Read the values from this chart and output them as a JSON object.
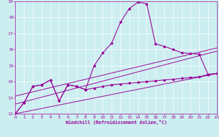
{
  "x": [
    0,
    1,
    2,
    3,
    4,
    5,
    6,
    7,
    8,
    9,
    10,
    11,
    12,
    13,
    14,
    15,
    16,
    17,
    18,
    19,
    20,
    21,
    22,
    23
  ],
  "peak_line": [
    12.0,
    12.7,
    13.7,
    13.8,
    14.1,
    12.8,
    13.8,
    13.7,
    13.5,
    15.0,
    15.8,
    16.4,
    17.7,
    18.55,
    18.95,
    18.85,
    16.35,
    16.2,
    16.0,
    15.8,
    15.75,
    15.7,
    14.45,
    14.5
  ],
  "flat_line": [
    12.0,
    12.7,
    13.7,
    13.8,
    14.1,
    12.8,
    13.8,
    13.7,
    13.5,
    13.6,
    13.7,
    13.8,
    13.85,
    13.9,
    13.95,
    14.0,
    14.05,
    14.1,
    14.15,
    14.2,
    14.25,
    14.3,
    14.45,
    14.5
  ],
  "trend1_x": [
    0,
    23
  ],
  "trend1_y": [
    12.0,
    14.5
  ],
  "trend2_x": [
    0,
    23
  ],
  "trend2_y": [
    12.6,
    15.9
  ],
  "trend3_x": [
    0,
    23
  ],
  "trend3_y": [
    13.1,
    16.1
  ],
  "ylim": [
    12,
    19
  ],
  "xlim": [
    0,
    23
  ],
  "yticks": [
    12,
    13,
    14,
    15,
    16,
    17,
    18,
    19
  ],
  "xticks": [
    0,
    1,
    2,
    3,
    4,
    5,
    6,
    7,
    8,
    9,
    10,
    11,
    12,
    13,
    14,
    15,
    16,
    17,
    18,
    19,
    20,
    21,
    22,
    23
  ],
  "xlabel": "Windchill (Refroidissement éolien,°C)",
  "bg_color": "#cceef0",
  "line_color": "#990099",
  "grid_color": "#ffffff"
}
